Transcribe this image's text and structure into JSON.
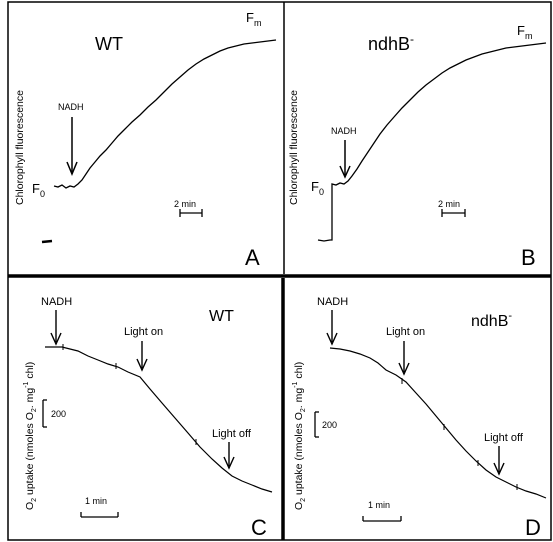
{
  "panels": {
    "A": {
      "letter": "A",
      "strain": "WT",
      "ylabel": "Chlorophyll fluorescence",
      "f0": "F",
      "f0_sub": "0",
      "fm": "F",
      "fm_sub": "m",
      "event": "NADH",
      "scale": "2 min"
    },
    "B": {
      "letter": "B",
      "strain": "ndhB",
      "strain_sup": "-",
      "ylabel": "Chlorophyll fluorescence",
      "f0": "F",
      "f0_sub": "0",
      "fm": "F",
      "fm_sub": "m",
      "event": "NADH",
      "scale": "2 min"
    },
    "C": {
      "letter": "C",
      "strain": "WT",
      "ylabel_parts": [
        "O",
        "2",
        " uptake (nmoles O",
        "2",
        ". mg",
        "-1",
        " chl)"
      ],
      "events": [
        "NADH",
        "Light on",
        "Light off"
      ],
      "yscale": "200",
      "xscale": "1 min"
    },
    "D": {
      "letter": "D",
      "strain": "ndhB",
      "strain_sup": "-",
      "ylabel_parts": [
        "O",
        "2",
        " uptake (nmoles O",
        "2",
        ". mg",
        "-1",
        " chl)"
      ],
      "events": [
        "NADH",
        "Light on",
        "Light off"
      ],
      "yscale": "200",
      "xscale": "1 min"
    }
  },
  "chart_data": [
    {
      "type": "line",
      "panel": "A",
      "title": "WT",
      "ylabel": "Chlorophyll fluorescence",
      "annotations": [
        "NADH",
        "F0",
        "Fm",
        "2 min"
      ],
      "series": [
        {
          "x": [
            0,
            1,
            2,
            3,
            4,
            5,
            6,
            7,
            8,
            9,
            10,
            11,
            12,
            13,
            14,
            15,
            16
          ],
          "y": [
            0,
            0.0,
            0.05,
            0.2,
            0.35,
            0.48,
            0.58,
            0.67,
            0.74,
            0.8,
            0.85,
            0.89,
            0.92,
            0.95,
            0.97,
            0.99,
            1.0
          ]
        }
      ]
    },
    {
      "type": "line",
      "panel": "B",
      "title": "ndhB-",
      "ylabel": "Chlorophyll fluorescence",
      "annotations": [
        "NADH",
        "F0",
        "Fm",
        "2 min"
      ],
      "series": [
        {
          "x": [
            0,
            1,
            2,
            3,
            4,
            5,
            6,
            7,
            8,
            9,
            10,
            11,
            12,
            13,
            14,
            15,
            16
          ],
          "y": [
            0,
            0.01,
            0.15,
            0.35,
            0.52,
            0.64,
            0.73,
            0.8,
            0.85,
            0.89,
            0.92,
            0.94,
            0.96,
            0.97,
            0.98,
            0.99,
            1.0
          ]
        }
      ]
    },
    {
      "type": "line",
      "panel": "C",
      "title": "WT",
      "ylabel": "O2 uptake (nmoles O2. mg-1 chl)",
      "annotations": [
        "NADH",
        "Light on",
        "Light off",
        "200",
        "1 min"
      ],
      "series": [
        {
          "x": [
            0,
            0.5,
            1,
            1.5,
            2,
            2.5,
            3,
            3.5,
            4,
            4.5,
            5,
            5.5,
            6,
            6.5
          ],
          "y": [
            0,
            10,
            40,
            75,
            110,
            145,
            260,
            400,
            540,
            670,
            760,
            800,
            830,
            860
          ]
        }
      ]
    },
    {
      "type": "line",
      "panel": "D",
      "title": "ndhB-",
      "ylabel": "O2 uptake (nmoles O2. mg-1 chl)",
      "annotations": [
        "NADH",
        "Light on",
        "Light off",
        "200",
        "1 min"
      ],
      "series": [
        {
          "x": [
            0,
            0.5,
            1,
            1.5,
            2,
            2.5,
            3,
            3.5,
            4,
            4.5,
            5,
            5.5,
            6,
            6.5,
            7
          ],
          "y": [
            0,
            20,
            50,
            120,
            170,
            300,
            430,
            560,
            680,
            790,
            880,
            930,
            980,
            1020,
            1050
          ]
        }
      ]
    }
  ]
}
